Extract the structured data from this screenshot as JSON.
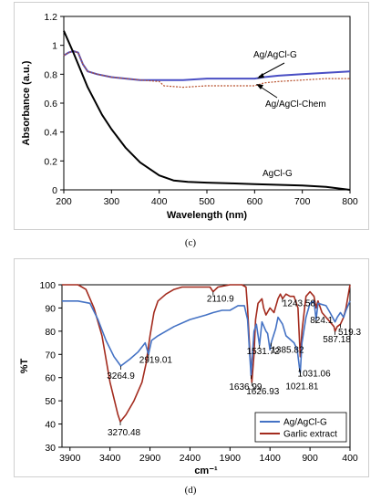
{
  "chart_data": [
    {
      "type": "line",
      "panel_label": "(c)",
      "xlabel": "Wavelength (nm)",
      "ylabel": "Absorbance (a.u.)",
      "xlim": [
        200,
        800
      ],
      "ylim": [
        0,
        1.2
      ],
      "xticks": [
        "200",
        "300",
        "400",
        "500",
        "600",
        "700",
        "800"
      ],
      "yticks": [
        "0",
        "0.2",
        "0.4",
        "0.6",
        "0.8",
        "1",
        "1.2"
      ],
      "grid": false,
      "series": [
        {
          "name": "Ag/AgCl-G",
          "color": "#4a4fc4",
          "x": [
            200,
            210,
            220,
            230,
            240,
            250,
            270,
            300,
            330,
            360,
            400,
            450,
            500,
            550,
            600,
            620,
            650,
            700,
            750,
            800
          ],
          "y": [
            0.93,
            0.95,
            0.96,
            0.95,
            0.87,
            0.82,
            0.8,
            0.78,
            0.77,
            0.76,
            0.76,
            0.76,
            0.77,
            0.77,
            0.77,
            0.78,
            0.79,
            0.8,
            0.81,
            0.82
          ]
        },
        {
          "name": "Ag/AgCl-Chem",
          "color": "#b8522e",
          "x": [
            200,
            210,
            220,
            230,
            240,
            250,
            270,
            300,
            330,
            360,
            400,
            410,
            450,
            500,
            550,
            600,
            620,
            650,
            700,
            750,
            800
          ],
          "y": [
            0.93,
            0.95,
            0.96,
            0.95,
            0.87,
            0.82,
            0.8,
            0.78,
            0.77,
            0.76,
            0.75,
            0.72,
            0.71,
            0.72,
            0.72,
            0.72,
            0.74,
            0.75,
            0.76,
            0.77,
            0.77
          ]
        },
        {
          "name": "AgCl-G",
          "color": "#000000",
          "x": [
            200,
            220,
            250,
            280,
            300,
            330,
            360,
            400,
            430,
            460,
            500,
            550,
            600,
            650,
            700,
            750,
            800
          ],
          "y": [
            1.1,
            0.95,
            0.71,
            0.52,
            0.42,
            0.29,
            0.19,
            0.1,
            0.065,
            0.055,
            0.05,
            0.045,
            0.04,
            0.035,
            0.03,
            0.02,
            0.0
          ]
        }
      ],
      "annotations": [
        "Ag/AgCl-G",
        "Ag/AgCl-Chem",
        "AgCl-G"
      ]
    },
    {
      "type": "line",
      "panel_label": "(d)",
      "xlabel": "cm⁻¹",
      "ylabel": "%T",
      "xlim": [
        4000,
        400
      ],
      "ylim": [
        30,
        100
      ],
      "xticks": [
        "3900",
        "3400",
        "2900",
        "2400",
        "1900",
        "1400",
        "900",
        "400"
      ],
      "yticks": [
        "30",
        "40",
        "50",
        "60",
        "70",
        "80",
        "90",
        "100"
      ],
      "grid": false,
      "legend": {
        "position": "bottom-right",
        "entries": [
          "Ag/AgCl-G",
          "Garlic extract"
        ]
      },
      "series": [
        {
          "name": "Ag/AgCl-G",
          "color": "#4472c4",
          "x": [
            4000,
            3800,
            3650,
            3550,
            3450,
            3350,
            3264.9,
            3150,
            3050,
            2960,
            2919.01,
            2880,
            2800,
            2600,
            2400,
            2200,
            2110.9,
            2000,
            1900,
            1800,
            1720,
            1680,
            1636.99,
            1600,
            1570,
            1531.72,
            1500,
            1450,
            1430,
            1400,
            1385.82,
            1330,
            1300,
            1243.58,
            1200,
            1100,
            1060,
            1031.06,
            1021.81,
            1000,
            950,
            900,
            850,
            824.1,
            800,
            700,
            650,
            587.18,
            560,
            519.3,
            480,
            450,
            400
          ],
          "y": [
            93,
            93,
            92,
            85,
            76,
            69,
            65,
            68,
            71,
            75,
            70,
            76,
            78,
            82,
            85,
            87,
            88,
            89,
            89,
            91,
            91,
            85,
            61,
            80,
            83,
            74,
            84,
            80,
            79,
            72,
            75,
            81,
            86,
            83,
            78,
            75,
            72,
            64,
            62,
            75,
            86,
            92,
            93,
            85,
            92,
            91,
            88,
            84,
            86,
            88,
            86,
            89,
            93
          ]
        },
        {
          "name": "Garlic extract",
          "color": "#a32b1e",
          "x": [
            4000,
            3800,
            3700,
            3600,
            3500,
            3400,
            3300,
            3270.48,
            3200,
            3100,
            3000,
            2950,
            2900,
            2850,
            2800,
            2700,
            2600,
            2500,
            2300,
            2150,
            2110.9,
            2050,
            1900,
            1750,
            1700,
            1680,
            1650,
            1626.93,
            1600,
            1580,
            1550,
            1500,
            1480,
            1450,
            1400,
            1350,
            1300,
            1270,
            1243.58,
            1200,
            1150,
            1100,
            1050,
            1021.81,
            1000,
            950,
            900,
            850,
            824.1,
            800,
            750,
            700,
            650,
            600,
            587.18,
            560,
            519.3,
            480,
            450,
            400
          ],
          "y": [
            100,
            100,
            98,
            90,
            78,
            58,
            44,
            41,
            44,
            50,
            58,
            66,
            78,
            88,
            93,
            96,
            98,
            99,
            99,
            99,
            97,
            99,
            100,
            100,
            99,
            90,
            70,
            58,
            70,
            85,
            92,
            94,
            90,
            87,
            90,
            88,
            94,
            96,
            94,
            96,
            95,
            95,
            90,
            69,
            80,
            95,
            97,
            95,
            90,
            93,
            88,
            86,
            84,
            82,
            80,
            82,
            83,
            86,
            90,
            100
          ]
        }
      ],
      "annotations": [
        {
          "label": "3264.9"
        },
        {
          "label": "3270.48"
        },
        {
          "label": "2919.01"
        },
        {
          "label": "2110.9"
        },
        {
          "label": "1636.99"
        },
        {
          "label": "1626.93"
        },
        {
          "label": "1531.72"
        },
        {
          "label": "1385.82"
        },
        {
          "label": "1243.58"
        },
        {
          "label": "1031.06"
        },
        {
          "label": "1021.81"
        },
        {
          "label": "824.1"
        },
        {
          "label": "587.18"
        },
        {
          "label": "519.3"
        }
      ]
    }
  ]
}
